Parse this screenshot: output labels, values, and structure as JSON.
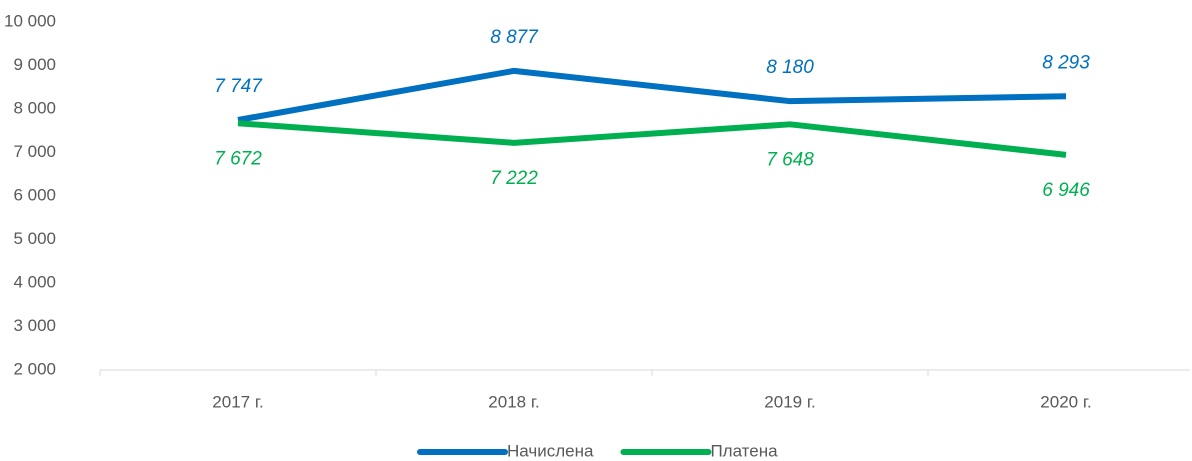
{
  "chart_data": {
    "type": "line",
    "categories": [
      "2017 г.",
      "2018 г.",
      "2019 г.",
      "2020 г."
    ],
    "series": [
      {
        "name": "Начислена",
        "color": "#0070c0",
        "values": [
          7747,
          8877,
          8180,
          8293
        ],
        "value_labels": [
          "7 747",
          "8 877",
          "8 180",
          "8 293"
        ]
      },
      {
        "name": "Платена",
        "color": "#00b050",
        "values": [
          7672,
          7222,
          7648,
          6946
        ],
        "value_labels": [
          "7 672",
          "7 222",
          "7 648",
          "6 946"
        ]
      }
    ],
    "ylim": [
      2000,
      10000
    ],
    "yticks": [
      {
        "value": 2000,
        "label": "2 000"
      },
      {
        "value": 3000,
        "label": "3 000"
      },
      {
        "value": 4000,
        "label": "4 000"
      },
      {
        "value": 5000,
        "label": "5 000"
      },
      {
        "value": 6000,
        "label": "6 000"
      },
      {
        "value": 7000,
        "label": "7 000"
      },
      {
        "value": 8000,
        "label": "8 000"
      },
      {
        "value": 9000,
        "label": "9 000"
      },
      {
        "value": 10000,
        "label": "10 000"
      }
    ],
    "grid": false,
    "legend": "bottom"
  }
}
